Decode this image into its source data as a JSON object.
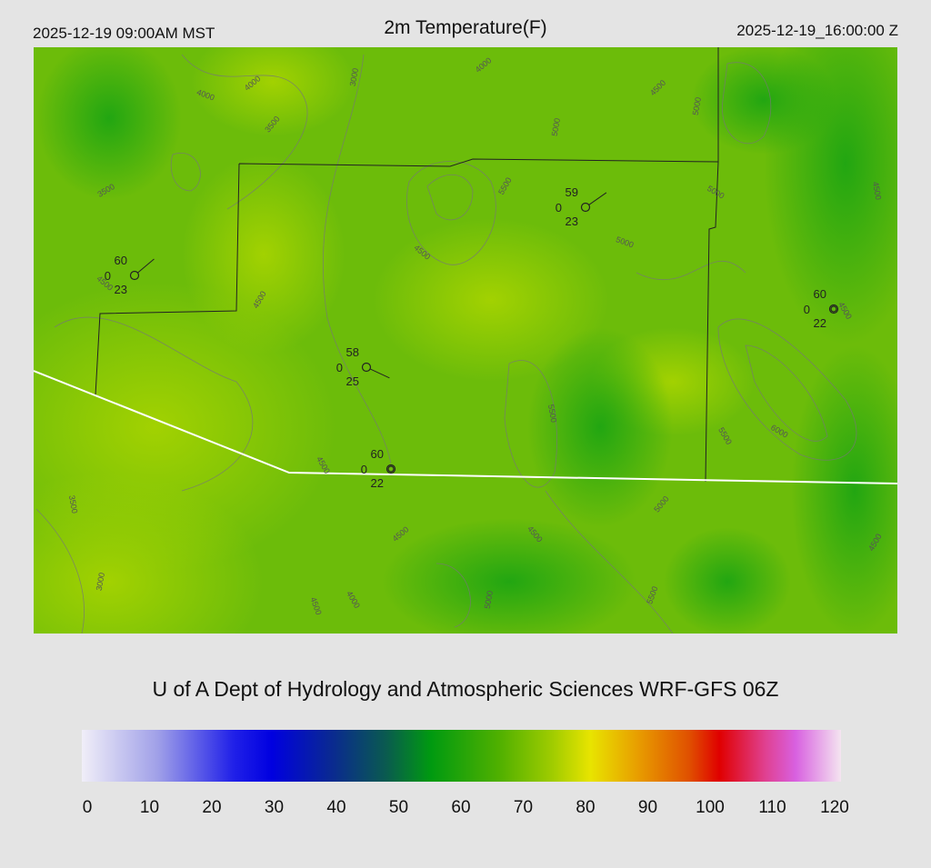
{
  "header": {
    "left": "2025-12-19 09:00AM MST",
    "title": "2m Temperature(F)",
    "right": "2025-12-19_16:00:00 Z"
  },
  "map": {
    "stations": [
      {
        "temperature": 60,
        "wind": 0,
        "dewpoint": 23
      },
      {
        "temperature": 58,
        "wind": 0,
        "dewpoint": 25
      },
      {
        "temperature": 59,
        "wind": 0,
        "dewpoint": 23
      },
      {
        "temperature": 60,
        "wind": 0,
        "dewpoint": 22
      },
      {
        "temperature": 60,
        "wind": 0,
        "dewpoint": 22
      }
    ],
    "contour_labels": [
      4000,
      4000,
      3000,
      3500,
      3500,
      4000,
      4500,
      5000,
      5000,
      5500,
      5000,
      4500,
      5000,
      4500,
      4500,
      4500,
      4500,
      5500,
      5500,
      6000,
      4500,
      4500,
      4500,
      5000,
      3500,
      3000,
      4000,
      4500,
      5000,
      5500,
      4500
    ]
  },
  "footer": {
    "credit": "U of A Dept of Hydrology and Atmospheric Sciences WRF-GFS 06Z"
  },
  "colorbar": {
    "ticks": [
      0,
      10,
      20,
      30,
      40,
      50,
      60,
      70,
      80,
      90,
      100,
      110,
      120
    ]
  }
}
